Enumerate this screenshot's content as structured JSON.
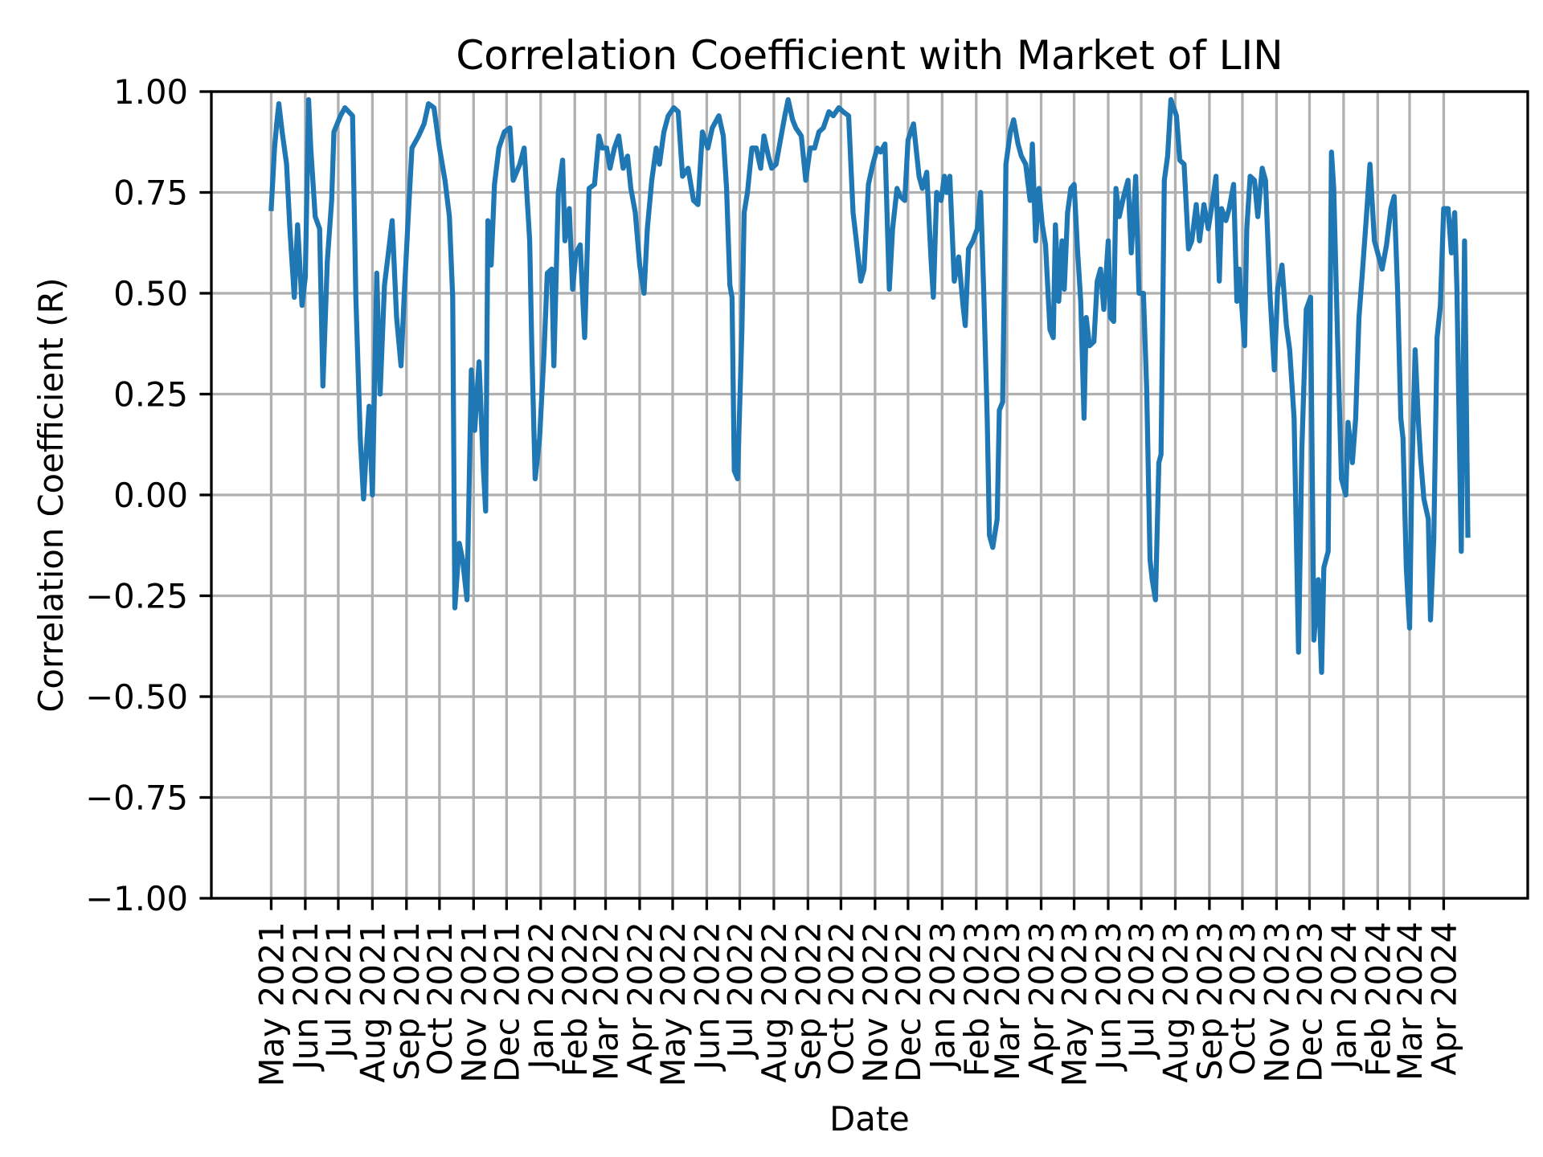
{
  "chart_data": {
    "type": "line",
    "title": "Correlation Coefficient with Market of LIN",
    "xlabel": "Date",
    "ylabel": "Correlation Coefficient (R)",
    "ylim": [
      -1.0,
      1.0
    ],
    "yticks": [
      "1.00",
      "0.75",
      "0.50",
      "0.25",
      "0.00",
      "−0.25",
      "−0.50",
      "−0.75",
      "−1.00"
    ],
    "ytick_values": [
      1.0,
      0.75,
      0.5,
      0.25,
      0.0,
      -0.25,
      -0.5,
      -0.75,
      -1.0
    ],
    "xtick_dates": [
      "2021-05-01",
      "2021-06-01",
      "2021-07-01",
      "2021-08-01",
      "2021-09-01",
      "2021-10-01",
      "2021-11-01",
      "2021-12-01",
      "2022-01-01",
      "2022-02-01",
      "2022-03-01",
      "2022-04-01",
      "2022-05-01",
      "2022-06-01",
      "2022-07-01",
      "2022-08-01",
      "2022-09-01",
      "2022-10-01",
      "2022-11-01",
      "2022-12-01",
      "2023-01-01",
      "2023-02-01",
      "2023-03-01",
      "2023-04-01",
      "2023-05-01",
      "2023-06-01",
      "2023-07-01",
      "2023-08-01",
      "2023-09-01",
      "2023-10-01",
      "2023-11-01",
      "2023-12-01",
      "2024-01-01",
      "2024-02-01",
      "2024-03-01",
      "2024-04-01"
    ],
    "xticks": [
      "May 2021",
      "Jun 2021",
      "Jul 2021",
      "Aug 2021",
      "Sep 2021",
      "Oct 2021",
      "Nov 2021",
      "Dec 2021",
      "Jan 2022",
      "Feb 2022",
      "Mar 2022",
      "Apr 2022",
      "May 2022",
      "Jun 2022",
      "Jul 2022",
      "Aug 2022",
      "Sep 2022",
      "Oct 2022",
      "Nov 2022",
      "Dec 2022",
      "Jan 2023",
      "Feb 2023",
      "Mar 2023",
      "Apr 2023",
      "May 2023",
      "Jun 2023",
      "Jul 2023",
      "Aug 2023",
      "Sep 2023",
      "Oct 2023",
      "Nov 2023",
      "Dec 2023",
      "Jan 2024",
      "Feb 2024",
      "Mar 2024",
      "Apr 2024"
    ],
    "grid": true,
    "legend": "none",
    "colors": {
      "line": "#1f77b4",
      "grid": "#b0b0b0",
      "axes": "#000000"
    },
    "x": [
      "2021-05-01",
      "2021-05-04",
      "2021-05-06",
      "2021-05-08",
      "2021-05-11",
      "2021-05-15",
      "2021-05-18",
      "2021-05-22",
      "2021-05-25",
      "2021-05-29",
      "2021-06-01",
      "2021-06-04",
      "2021-06-06",
      "2021-06-10",
      "2021-06-14",
      "2021-06-17",
      "2021-06-21",
      "2021-06-25",
      "2021-06-27",
      "2021-07-03",
      "2021-07-07",
      "2021-07-14",
      "2021-07-17",
      "2021-07-21",
      "2021-07-24",
      "2021-07-26",
      "2021-07-29",
      "2021-08-01",
      "2021-08-05",
      "2021-08-08",
      "2021-08-12",
      "2021-08-16",
      "2021-08-19",
      "2021-08-23",
      "2021-08-27",
      "2021-08-30",
      "2021-09-03",
      "2021-09-06",
      "2021-09-12",
      "2021-09-17",
      "2021-09-21",
      "2021-09-26",
      "2021-10-01",
      "2021-10-06",
      "2021-10-10",
      "2021-10-13",
      "2021-10-15",
      "2021-10-19",
      "2021-10-22",
      "2021-10-26",
      "2021-10-30",
      "2021-11-02",
      "2021-11-06",
      "2021-11-10",
      "2021-11-12",
      "2021-11-14",
      "2021-11-17",
      "2021-11-20",
      "2021-11-24",
      "2021-11-29",
      "2021-12-04",
      "2021-12-07",
      "2021-12-13",
      "2021-12-17",
      "2021-12-22",
      "2021-12-24",
      "2021-12-27",
      "2021-12-31",
      "2022-01-04",
      "2022-01-07",
      "2022-01-11",
      "2022-01-13",
      "2022-01-17",
      "2022-01-21",
      "2022-01-23",
      "2022-01-27",
      "2022-01-30",
      "2022-02-02",
      "2022-02-06",
      "2022-02-10",
      "2022-02-14",
      "2022-02-19",
      "2022-02-23",
      "2022-02-26",
      "2022-03-02",
      "2022-03-05",
      "2022-03-09",
      "2022-03-13",
      "2022-03-17",
      "2022-03-21",
      "2022-03-24",
      "2022-03-28",
      "2022-04-01",
      "2022-04-05",
      "2022-04-08",
      "2022-04-12",
      "2022-04-16",
      "2022-04-19",
      "2022-04-23",
      "2022-04-27",
      "2022-05-02",
      "2022-05-06",
      "2022-05-10",
      "2022-05-15",
      "2022-05-20",
      "2022-05-24",
      "2022-05-28",
      "2022-06-02",
      "2022-06-06",
      "2022-06-12",
      "2022-06-16",
      "2022-06-19",
      "2022-06-22",
      "2022-06-24",
      "2022-06-26",
      "2022-06-29",
      "2022-07-03",
      "2022-07-05",
      "2022-07-08",
      "2022-07-12",
      "2022-07-16",
      "2022-07-20",
      "2022-07-23",
      "2022-07-27",
      "2022-07-30",
      "2022-08-03",
      "2022-08-07",
      "2022-08-11",
      "2022-08-14",
      "2022-08-18",
      "2022-08-21",
      "2022-08-26",
      "2022-08-30",
      "2022-09-03",
      "2022-09-07",
      "2022-09-11",
      "2022-09-15",
      "2022-09-20",
      "2022-09-24",
      "2022-09-29",
      "2022-10-03",
      "2022-10-08",
      "2022-10-12",
      "2022-10-15",
      "2022-10-19",
      "2022-10-22",
      "2022-10-26",
      "2022-10-30",
      "2022-11-03",
      "2022-11-06",
      "2022-11-10",
      "2022-11-14",
      "2022-11-17",
      "2022-11-21",
      "2022-11-24",
      "2022-11-28",
      "2022-12-01",
      "2022-12-06",
      "2022-12-11",
      "2022-12-14",
      "2022-12-18",
      "2022-12-22",
      "2022-12-24",
      "2022-12-27",
      "2022-12-31",
      "2023-01-03",
      "2023-01-05",
      "2023-01-08",
      "2023-01-12",
      "2023-01-16",
      "2023-01-20",
      "2023-01-22",
      "2023-01-25",
      "2023-01-29",
      "2023-02-02",
      "2023-02-05",
      "2023-02-08",
      "2023-02-11",
      "2023-02-13",
      "2023-02-16",
      "2023-02-20",
      "2023-02-22",
      "2023-02-25",
      "2023-02-28",
      "2023-03-04",
      "2023-03-07",
      "2023-03-11",
      "2023-03-14",
      "2023-03-18",
      "2023-03-22",
      "2023-03-24",
      "2023-03-27",
      "2023-03-30",
      "2023-04-02",
      "2023-04-05",
      "2023-04-09",
      "2023-04-12",
      "2023-04-14",
      "2023-04-17",
      "2023-04-20",
      "2023-04-22",
      "2023-04-25",
      "2023-04-28",
      "2023-05-01",
      "2023-05-04",
      "2023-05-07",
      "2023-05-10",
      "2023-05-12",
      "2023-05-15",
      "2023-05-19",
      "2023-05-22",
      "2023-05-25",
      "2023-05-28",
      "2023-06-01",
      "2023-06-03",
      "2023-06-06",
      "2023-06-08",
      "2023-06-11",
      "2023-06-15",
      "2023-06-19",
      "2023-06-22",
      "2023-06-26",
      "2023-06-29",
      "2023-07-03",
      "2023-07-06",
      "2023-07-09",
      "2023-07-11",
      "2023-07-14",
      "2023-07-17",
      "2023-07-19",
      "2023-07-22",
      "2023-07-25",
      "2023-07-28",
      "2023-08-02",
      "2023-08-05",
      "2023-08-09",
      "2023-08-13",
      "2023-08-16",
      "2023-08-20",
      "2023-08-23",
      "2023-08-27",
      "2023-08-31",
      "2023-09-04",
      "2023-09-07",
      "2023-09-10",
      "2023-09-12",
      "2023-09-16",
      "2023-09-19",
      "2023-09-23",
      "2023-09-26",
      "2023-09-28",
      "2023-10-03",
      "2023-10-05",
      "2023-10-08",
      "2023-10-12",
      "2023-10-15",
      "2023-10-19",
      "2023-10-22",
      "2023-10-26",
      "2023-10-30",
      "2023-11-02",
      "2023-11-06",
      "2023-11-10",
      "2023-11-13",
      "2023-11-17",
      "2023-11-21",
      "2023-11-24",
      "2023-11-28",
      "2023-12-02",
      "2023-12-05",
      "2023-12-09",
      "2023-12-12",
      "2023-12-14",
      "2023-12-18",
      "2023-12-21",
      "2023-12-23",
      "2023-12-27",
      "2023-12-30",
      "2024-01-03",
      "2024-01-05",
      "2024-01-09",
      "2024-01-12",
      "2024-01-15",
      "2024-01-18",
      "2024-01-22",
      "2024-01-25",
      "2024-01-29",
      "2024-02-02",
      "2024-02-05",
      "2024-02-09",
      "2024-02-13",
      "2024-02-16",
      "2024-02-19",
      "2024-02-22",
      "2024-02-24",
      "2024-02-27",
      "2024-03-01",
      "2024-03-03",
      "2024-03-06",
      "2024-03-09",
      "2024-03-11",
      "2024-03-14",
      "2024-03-18",
      "2024-03-20",
      "2024-03-23",
      "2024-03-26",
      "2024-03-29",
      "2024-04-01",
      "2024-04-05",
      "2024-04-08",
      "2024-04-11",
      "2024-04-13",
      "2024-04-17",
      "2024-04-20",
      "2024-04-23"
    ],
    "series": [
      {
        "values": [
          0.71,
          0.86,
          0.92,
          0.97,
          0.9,
          0.82,
          0.66,
          0.49,
          0.67,
          0.47,
          0.54,
          0.98,
          0.86,
          0.69,
          0.66,
          0.27,
          0.58,
          0.73,
          0.9,
          0.94,
          0.96,
          0.94,
          0.49,
          0.14,
          -0.01,
          0.09,
          0.22,
          0.0,
          0.55,
          0.25,
          0.52,
          0.61,
          0.68,
          0.44,
          0.32,
          0.5,
          0.71,
          0.86,
          0.89,
          0.92,
          0.97,
          0.96,
          0.86,
          0.78,
          0.69,
          0.49,
          -0.28,
          -0.12,
          -0.16,
          -0.26,
          0.31,
          0.16,
          0.33,
          0.06,
          -0.04,
          0.68,
          0.57,
          0.77,
          0.86,
          0.9,
          0.91,
          0.78,
          0.82,
          0.86,
          0.63,
          0.36,
          0.04,
          0.14,
          0.35,
          0.55,
          0.56,
          0.32,
          0.75,
          0.83,
          0.63,
          0.71,
          0.51,
          0.6,
          0.62,
          0.39,
          0.76,
          0.77,
          0.89,
          0.86,
          0.86,
          0.81,
          0.86,
          0.89,
          0.81,
          0.84,
          0.76,
          0.7,
          0.57,
          0.5,
          0.66,
          0.78,
          0.86,
          0.82,
          0.9,
          0.94,
          0.96,
          0.95,
          0.79,
          0.81,
          0.73,
          0.72,
          0.9,
          0.86,
          0.91,
          0.94,
          0.89,
          0.76,
          0.52,
          0.49,
          0.06,
          0.04,
          0.41,
          0.7,
          0.75,
          0.86,
          0.86,
          0.81,
          0.89,
          0.84,
          0.81,
          0.82,
          0.88,
          0.94,
          0.98,
          0.93,
          0.91,
          0.89,
          0.78,
          0.86,
          0.86,
          0.9,
          0.91,
          0.95,
          0.94,
          0.96,
          0.95,
          0.94,
          0.7,
          0.63,
          0.53,
          0.56,
          0.77,
          0.82,
          0.86,
          0.85,
          0.87,
          0.51,
          0.66,
          0.76,
          0.74,
          0.73,
          0.88,
          0.92,
          0.79,
          0.76,
          0.8,
          0.58,
          0.49,
          0.75,
          0.73,
          0.79,
          0.75,
          0.79,
          0.53,
          0.59,
          0.47,
          0.42,
          0.61,
          0.63,
          0.66,
          0.75,
          0.49,
          0.19,
          -0.1,
          -0.13,
          -0.06,
          0.21,
          0.23,
          0.82,
          0.9,
          0.93,
          0.87,
          0.84,
          0.82,
          0.73,
          0.87,
          0.63,
          0.76,
          0.67,
          0.62,
          0.41,
          0.39,
          0.67,
          0.48,
          0.63,
          0.51,
          0.7,
          0.76,
          0.77,
          0.61,
          0.48,
          0.19,
          0.44,
          0.37,
          0.38,
          0.53,
          0.56,
          0.46,
          0.63,
          0.44,
          0.43,
          0.76,
          0.69,
          0.74,
          0.78,
          0.6,
          0.79,
          0.5,
          0.5,
          0.26,
          -0.16,
          -0.21,
          -0.26,
          0.08,
          0.1,
          0.78,
          0.84,
          0.98,
          0.94,
          0.83,
          0.82,
          0.61,
          0.63,
          0.72,
          0.63,
          0.72,
          0.66,
          0.73,
          0.79,
          0.53,
          0.71,
          0.68,
          0.71,
          0.77,
          0.48,
          0.56,
          0.37,
          0.66,
          0.79,
          0.78,
          0.69,
          0.81,
          0.78,
          0.5,
          0.31,
          0.51,
          0.57,
          0.42,
          0.36,
          0.19,
          -0.39,
          0.11,
          0.46,
          0.49,
          -0.36,
          -0.21,
          -0.44,
          -0.18,
          -0.14,
          0.85,
          0.76,
          0.34,
          0.04,
          0.0,
          0.18,
          0.08,
          0.19,
          0.44,
          0.55,
          0.7,
          0.82,
          0.63,
          0.59,
          0.56,
          0.62,
          0.71,
          0.74,
          0.51,
          0.19,
          0.14,
          -0.18,
          -0.33,
          0.04,
          0.36,
          0.18,
          0.09,
          -0.01,
          -0.06,
          -0.31,
          -0.11,
          0.39,
          0.47,
          0.71,
          0.71,
          0.6,
          0.7,
          0.51,
          -0.14,
          0.63,
          -0.1
        ]
      }
    ]
  }
}
